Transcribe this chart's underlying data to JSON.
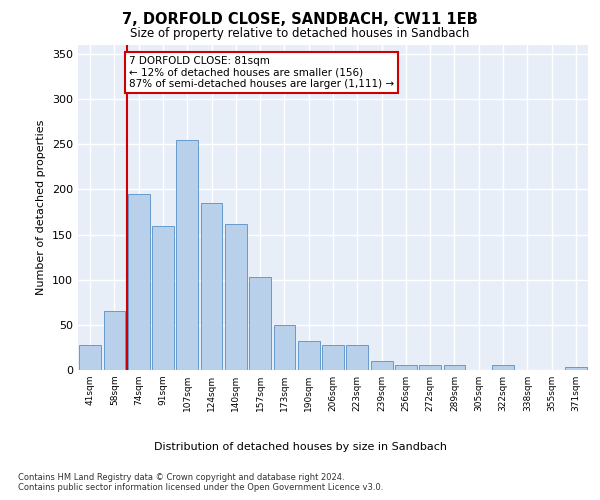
{
  "title": "7, DORFOLD CLOSE, SANDBACH, CW11 1EB",
  "subtitle": "Size of property relative to detached houses in Sandbach",
  "xlabel": "Distribution of detached houses by size in Sandbach",
  "ylabel": "Number of detached properties",
  "bar_labels": [
    "41sqm",
    "58sqm",
    "74sqm",
    "91sqm",
    "107sqm",
    "124sqm",
    "140sqm",
    "157sqm",
    "173sqm",
    "190sqm",
    "206sqm",
    "223sqm",
    "239sqm",
    "256sqm",
    "272sqm",
    "289sqm",
    "305sqm",
    "322sqm",
    "338sqm",
    "355sqm",
    "371sqm"
  ],
  "bar_values": [
    28,
    65,
    195,
    160,
    255,
    185,
    162,
    103,
    50,
    32,
    28,
    28,
    10,
    5,
    5,
    5,
    0,
    5,
    0,
    0,
    3
  ],
  "bar_color": "#b8d0ea",
  "bar_edge_color": "#6699cc",
  "annotation_text_line1": "7 DORFOLD CLOSE: 81sqm",
  "annotation_text_line2": "← 12% of detached houses are smaller (156)",
  "annotation_text_line3": "87% of semi-detached houses are larger (1,111) →",
  "annotation_box_facecolor": "#ffffff",
  "annotation_box_edgecolor": "#cc0000",
  "vline_color": "#cc0000",
  "vline_x": 1.5,
  "ylim": [
    0,
    360
  ],
  "yticks": [
    0,
    50,
    100,
    150,
    200,
    250,
    300,
    350
  ],
  "bg_color": "#e8eef8",
  "grid_color": "#ffffff",
  "footer_line1": "Contains HM Land Registry data © Crown copyright and database right 2024.",
  "footer_line2": "Contains public sector information licensed under the Open Government Licence v3.0."
}
